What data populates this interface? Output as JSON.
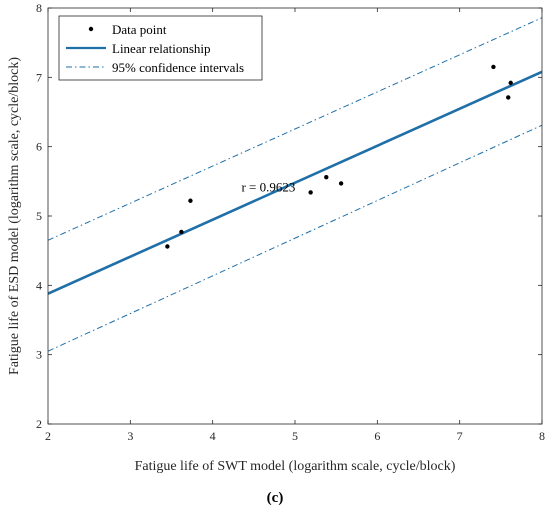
{
  "chart_data": {
    "type": "scatter",
    "xlabel": "Fatigue life of SWT model (logarithm scale, cycle/block)",
    "ylabel": "Fatigue life of ESD model (logarithm scale, cycle/block)",
    "xlim": [
      2,
      8
    ],
    "ylim": [
      2,
      8
    ],
    "xticks": [
      "2",
      "3",
      "4",
      "5",
      "6",
      "7",
      "8"
    ],
    "yticks": [
      "2",
      "3",
      "4",
      "5",
      "6",
      "7",
      "8"
    ],
    "grid": false,
    "legend_position": "top-left",
    "legend": [
      "Data point",
      "Linear relationship",
      "95% confidence intervals"
    ],
    "annotation": {
      "text": "r = 0.9623",
      "x": 4.35,
      "y": 5.35
    },
    "panel_label": "(c)",
    "series": [
      {
        "name": "Data point",
        "kind": "scatter",
        "color": "#000000",
        "points": [
          [
            3.45,
            4.56
          ],
          [
            3.62,
            4.77
          ],
          [
            3.73,
            5.22
          ],
          [
            5.19,
            5.34
          ],
          [
            5.38,
            5.56
          ],
          [
            5.56,
            5.47
          ],
          [
            7.41,
            7.15
          ],
          [
            7.59,
            6.71
          ],
          [
            7.62,
            6.92
          ]
        ]
      },
      {
        "name": "Linear relationship",
        "kind": "line",
        "color": "#1f6fa8",
        "points": [
          [
            2.0,
            3.88
          ],
          [
            8.0,
            7.08
          ]
        ]
      },
      {
        "name": "95% confidence intervals",
        "kind": "band",
        "color": "#1f6fa8",
        "upper": [
          [
            2.0,
            4.65
          ],
          [
            8.0,
            7.86
          ]
        ],
        "lower": [
          [
            2.0,
            3.05
          ],
          [
            8.0,
            6.31
          ]
        ]
      }
    ]
  }
}
